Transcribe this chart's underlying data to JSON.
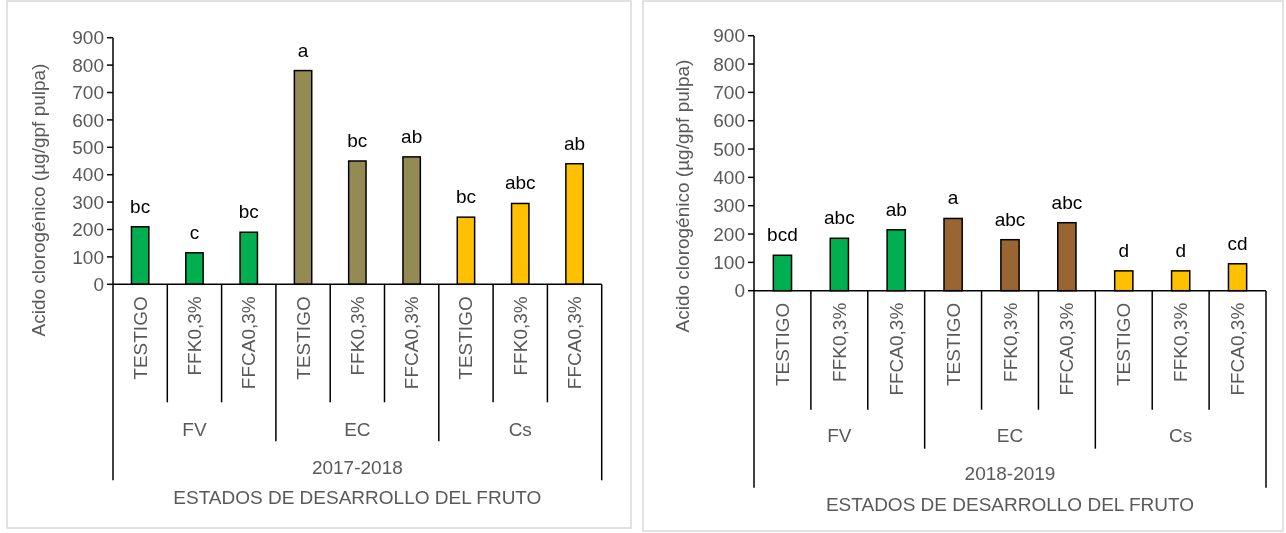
{
  "chart_data": [
    {
      "type": "bar",
      "categories": [
        "TESTIGO",
        "FFK0,3%",
        "FFCA0,3%",
        "TESTIGO",
        "FFK0,3%",
        "FFCA0,3%",
        "TESTIGO",
        "FFK0,3%",
        "FFCA0,3%"
      ],
      "values": [
        210,
        115,
        190,
        780,
        450,
        465,
        245,
        295,
        440
      ],
      "colors": [
        "#00b050",
        "#00b050",
        "#00b050",
        "#948a54",
        "#948a54",
        "#948a54",
        "#ffc000",
        "#ffc000",
        "#ffc000"
      ],
      "ylabel": "Acido clorogénico (µg/gpf pulpa)",
      "xlabel": "ESTADOS DE DESARROLLO DEL FRUTO",
      "ylim": [
        0,
        900
      ],
      "yticks": [
        0,
        100,
        200,
        300,
        400,
        500,
        600,
        700,
        800,
        900
      ],
      "annotations": [
        "bc",
        "c",
        "bc",
        "a",
        "bc",
        "ab",
        "bc",
        "abc",
        "ab",
        "FV",
        "EC",
        "Cs",
        "2017-2018"
      ]
    },
    {
      "type": "bar",
      "categories": [
        "TESTIGO",
        "FFK0,3%",
        "FFCA0,3%",
        "TESTIGO",
        "FFK0,3%",
        "FFCA0,3%",
        "TESTIGO",
        "FFK0,3%",
        "FFCA0,3%"
      ],
      "values": [
        125,
        185,
        215,
        255,
        180,
        240,
        70,
        70,
        95
      ],
      "colors": [
        "#00b050",
        "#00b050",
        "#00b050",
        "#996633",
        "#996633",
        "#996633",
        "#ffc000",
        "#ffc000",
        "#ffc000"
      ],
      "ylabel": "Acido clorogénico (µg/gpf pulpa)",
      "xlabel": "ESTADOS DE DESARROLLO DEL FRUTO",
      "ylim": [
        0,
        900
      ],
      "yticks": [
        0,
        100,
        200,
        300,
        400,
        500,
        600,
        700,
        800,
        900
      ],
      "annotations": [
        "bcd",
        "abc",
        "ab",
        "a",
        "abc",
        "abc",
        "d",
        "d",
        "cd",
        "FV",
        "EC",
        "Cs",
        "2018-2019"
      ]
    }
  ]
}
